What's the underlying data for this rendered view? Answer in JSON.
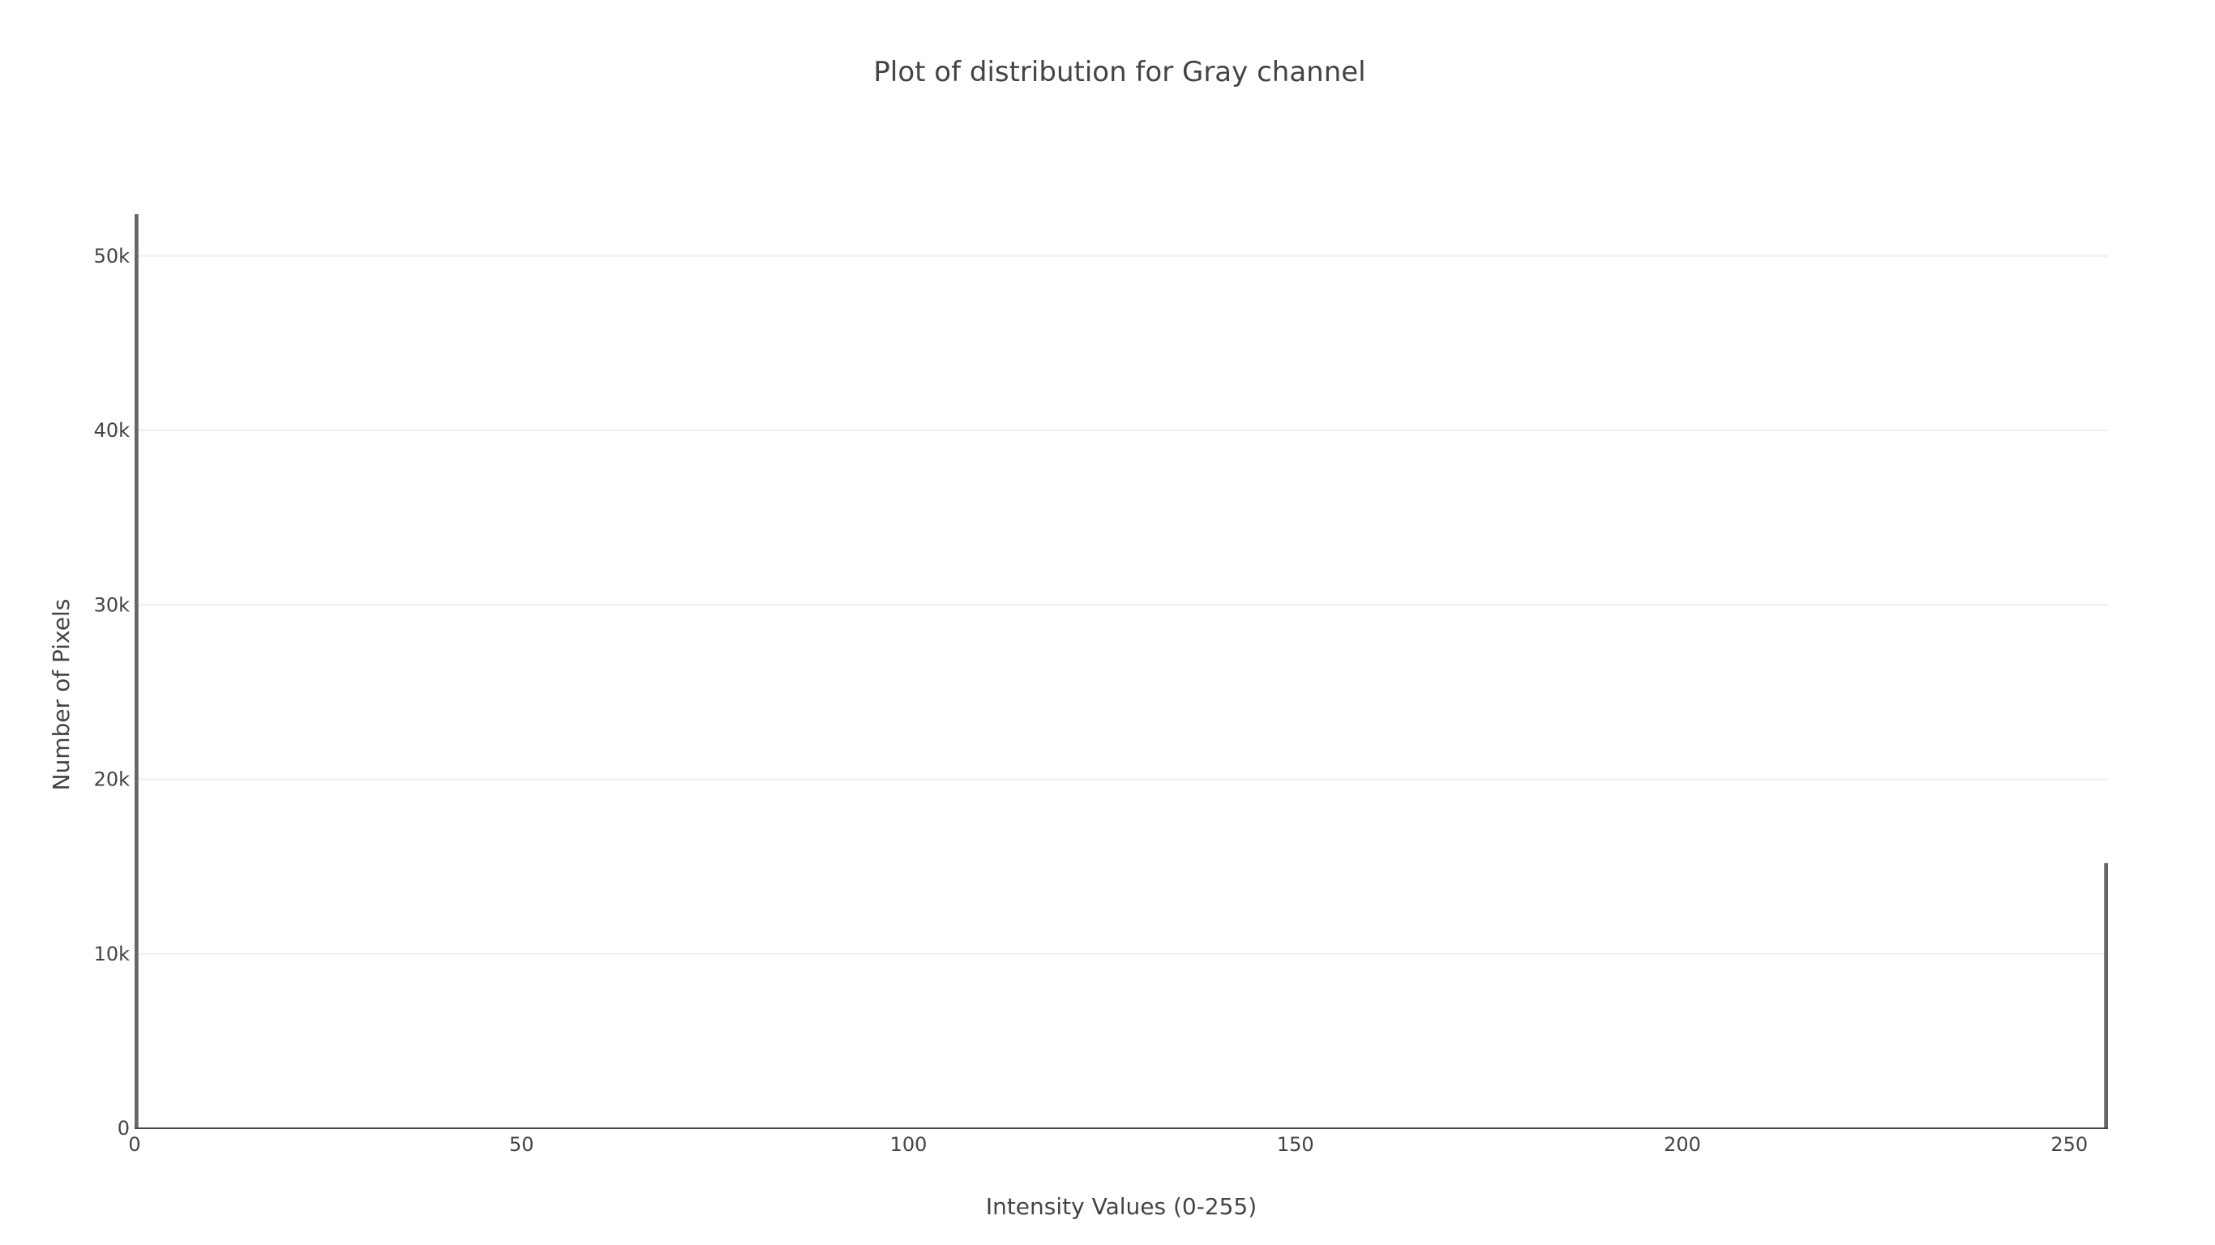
{
  "chart_data": {
    "type": "bar",
    "title": "Plot of distribution for Gray channel",
    "xlabel": "Intensity Values (0-255)",
    "ylabel": "Number of Pixels",
    "xlim": [
      0,
      255
    ],
    "ylim": [
      0,
      52500
    ],
    "x_ticks": [
      0,
      50,
      100,
      150,
      200,
      250
    ],
    "y_ticks": [
      0,
      10000,
      20000,
      30000,
      40000,
      50000
    ],
    "x_tick_labels": [
      "0",
      "50",
      "100",
      "150",
      "200",
      "250"
    ],
    "y_tick_labels": [
      "0",
      "10k",
      "20k",
      "30k",
      "40k",
      "50k"
    ],
    "grid": true,
    "bar_color": "#666666",
    "series": [
      {
        "x": [
          0,
          255
        ],
        "values": [
          52400,
          15200
        ]
      }
    ]
  }
}
